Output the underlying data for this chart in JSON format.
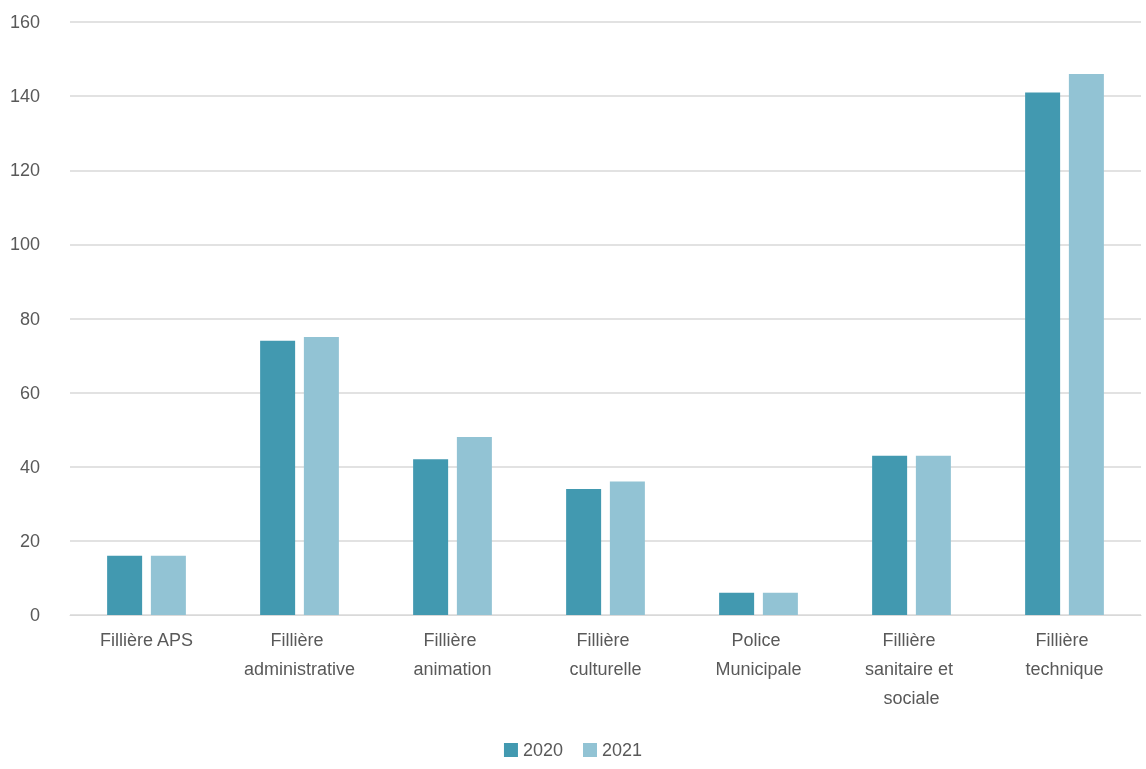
{
  "chart_data": {
    "type": "bar",
    "categories": [
      "Fillière APS",
      "Fillière administrative",
      "Fillière animation",
      "Fillière culturelle",
      "Police Municipale",
      "Fillière sanitaire et sociale",
      "Fillière technique"
    ],
    "series": [
      {
        "name": "2020",
        "color": "#4299b0",
        "values": [
          16,
          74,
          42,
          34,
          6,
          43,
          141
        ]
      },
      {
        "name": "2021",
        "color": "#92c3d4",
        "values": [
          16,
          75,
          48,
          36,
          6,
          43,
          146
        ]
      }
    ],
    "ylim": [
      0,
      160
    ],
    "yticks": [
      0,
      20,
      40,
      60,
      80,
      100,
      120,
      140,
      160
    ],
    "grid": "y",
    "legend": "bottom"
  }
}
